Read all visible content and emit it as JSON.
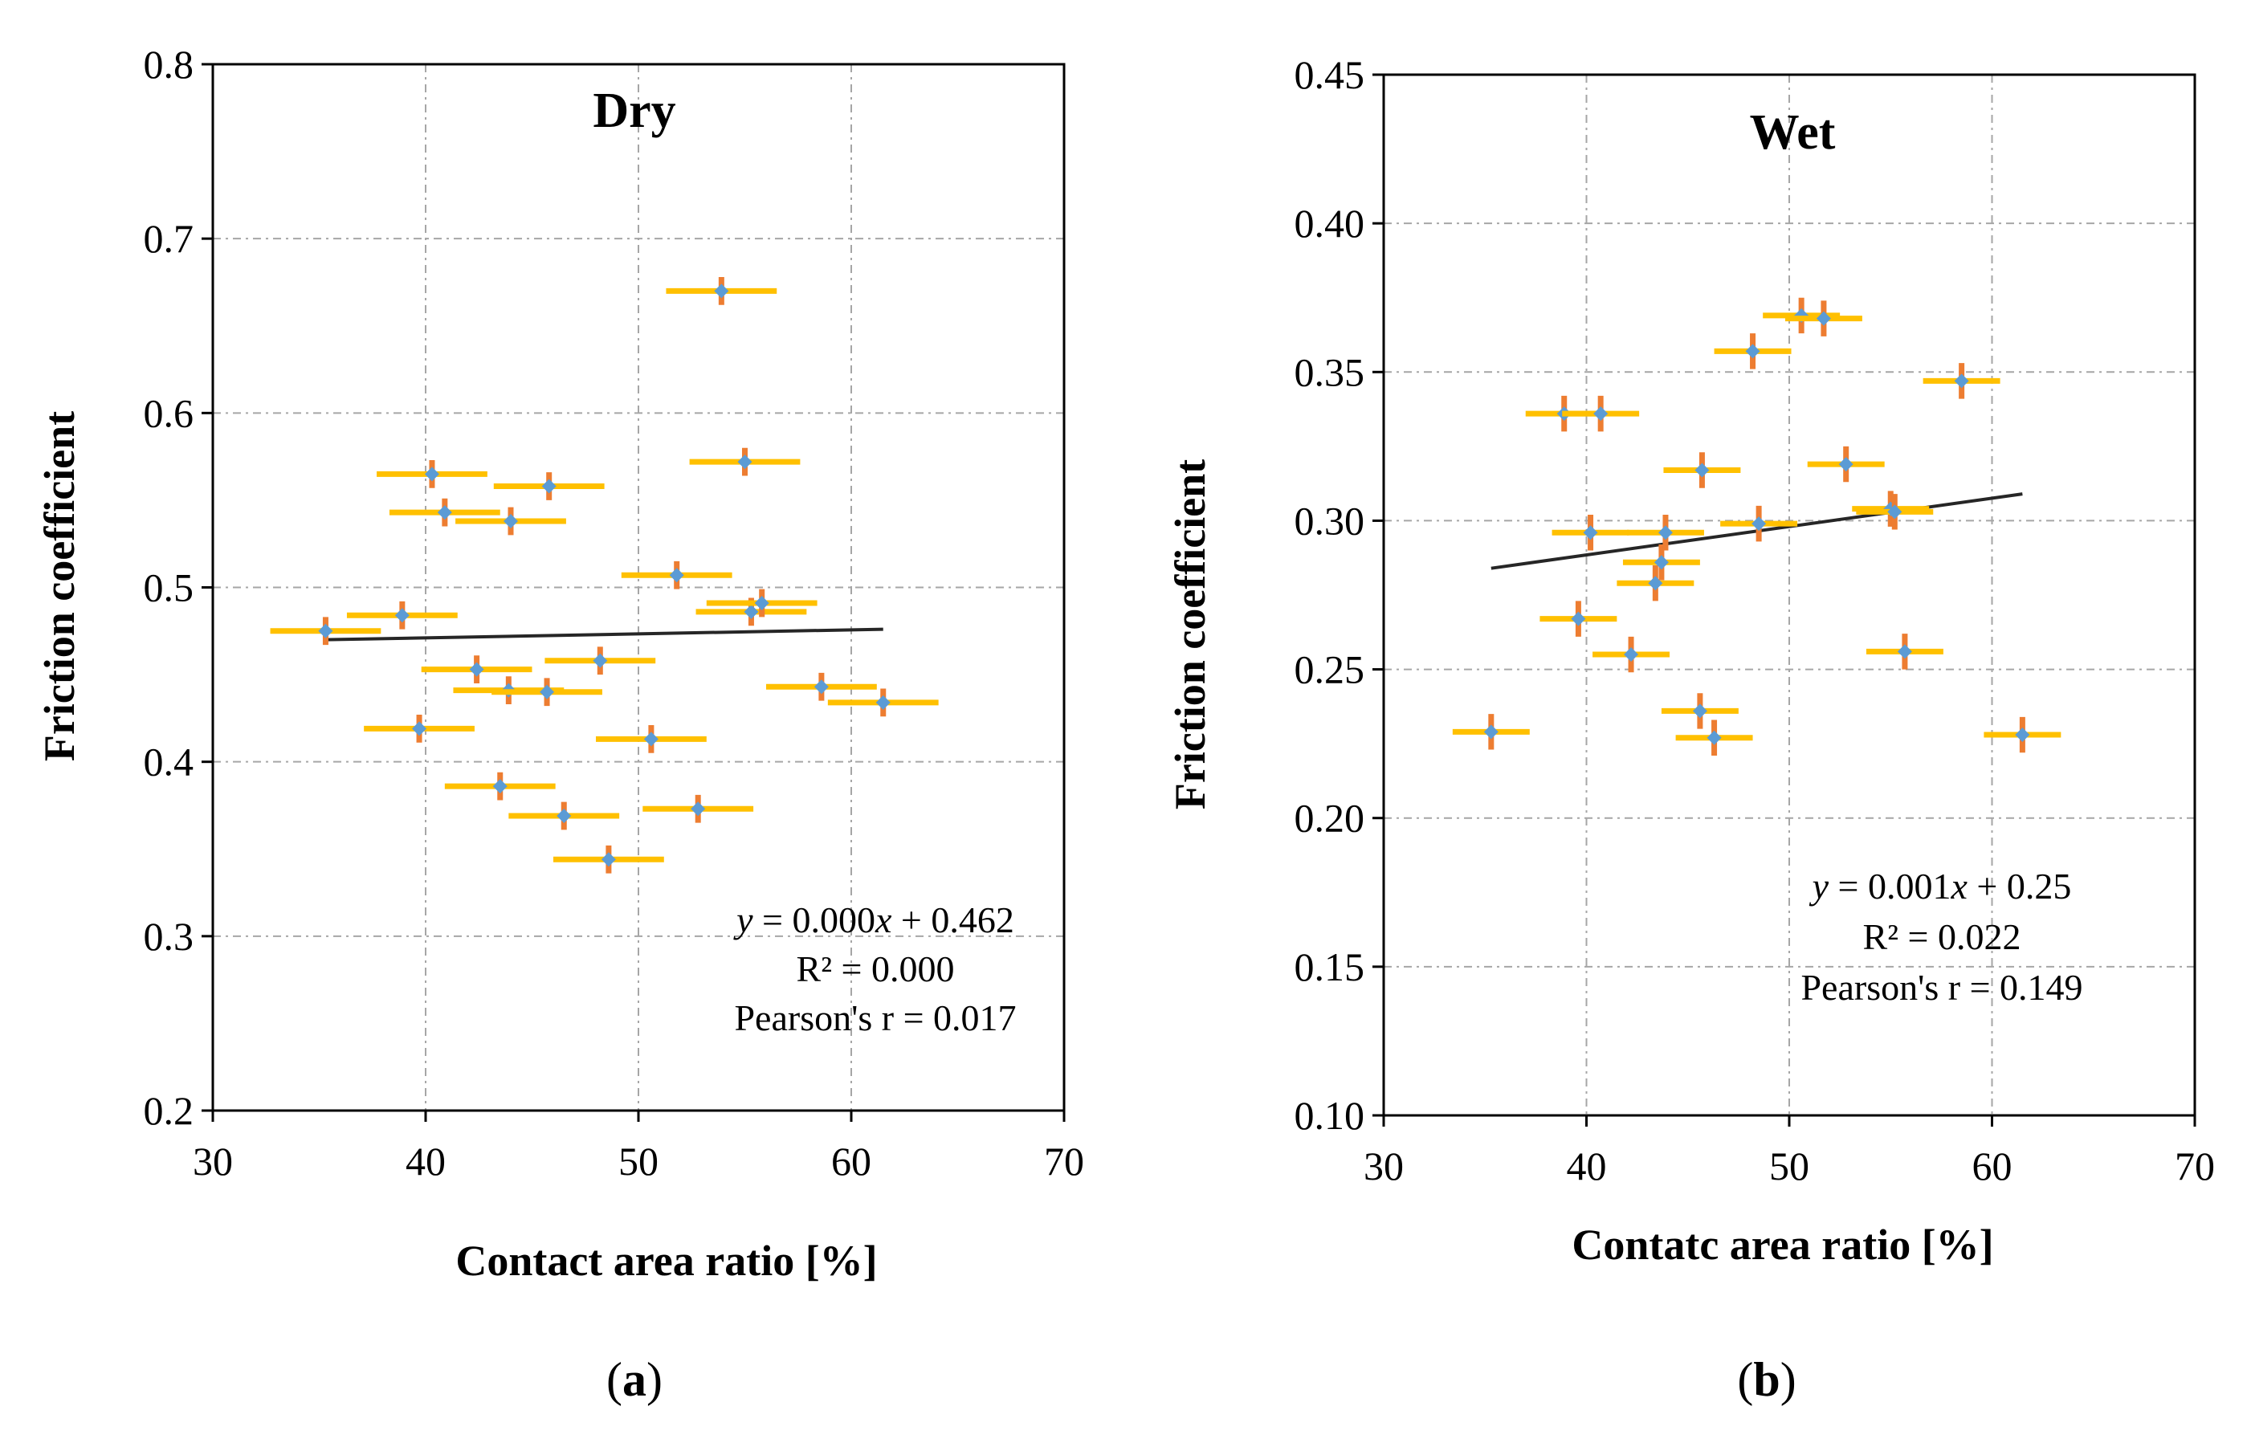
{
  "chart_data": [
    {
      "type": "scatter",
      "title": "Dry",
      "caption_letter": "a",
      "xlabel": "Contact area ratio [%]",
      "ylabel": "Friction coefficient",
      "xlim": [
        30,
        70
      ],
      "ylim": [
        0.2,
        0.8
      ],
      "xticks": [
        30,
        40,
        50,
        60,
        70
      ],
      "yticks": [
        0.2,
        0.3,
        0.4,
        0.5,
        0.6,
        0.7,
        0.8
      ],
      "ytick_decimals": 1,
      "grid": true,
      "xerr": 2.6,
      "yerr": 0.008,
      "colors": {
        "point": "#5b9bd5",
        "xerr": "#ffc000",
        "yerr": "#ed7d31",
        "trend": "#262626",
        "grid": "#a6a6a6"
      },
      "points": [
        {
          "x": 35.3,
          "y": 0.475
        },
        {
          "x": 38.9,
          "y": 0.484
        },
        {
          "x": 39.7,
          "y": 0.419
        },
        {
          "x": 40.3,
          "y": 0.565
        },
        {
          "x": 40.9,
          "y": 0.543
        },
        {
          "x": 42.4,
          "y": 0.453
        },
        {
          "x": 43.5,
          "y": 0.386
        },
        {
          "x": 43.9,
          "y": 0.441
        },
        {
          "x": 44.0,
          "y": 0.538
        },
        {
          "x": 45.7,
          "y": 0.44
        },
        {
          "x": 45.8,
          "y": 0.558
        },
        {
          "x": 46.5,
          "y": 0.369
        },
        {
          "x": 48.2,
          "y": 0.458
        },
        {
          "x": 48.6,
          "y": 0.344
        },
        {
          "x": 50.6,
          "y": 0.413
        },
        {
          "x": 51.8,
          "y": 0.507
        },
        {
          "x": 52.8,
          "y": 0.373
        },
        {
          "x": 53.9,
          "y": 0.67
        },
        {
          "x": 55.0,
          "y": 0.572
        },
        {
          "x": 55.3,
          "y": 0.486
        },
        {
          "x": 55.8,
          "y": 0.491
        },
        {
          "x": 58.6,
          "y": 0.443
        },
        {
          "x": 61.5,
          "y": 0.434
        }
      ],
      "trendline": {
        "x": [
          35.3,
          61.5
        ],
        "y": [
          0.47,
          0.476
        ]
      },
      "annotation": {
        "eq_y": "y",
        "eq_mid": " = 0.000",
        "eq_x": "x",
        "eq_tail": " + 0.462",
        "r2": "R² = 0.000",
        "pearson": "Pearson's r = 0.017"
      }
    },
    {
      "type": "scatter",
      "title": "Wet",
      "caption_letter": "b",
      "xlabel": "Contatc area ratio [%]",
      "ylabel": "Friction coefficient",
      "xlim": [
        30,
        70
      ],
      "ylim": [
        0.1,
        0.45
      ],
      "xticks": [
        30,
        40,
        50,
        60,
        70
      ],
      "yticks": [
        0.1,
        0.15,
        0.2,
        0.25,
        0.3,
        0.35,
        0.4,
        0.45
      ],
      "ytick_decimals": 2,
      "grid": true,
      "xerr": 1.9,
      "yerr": 0.006,
      "colors": {
        "point": "#5b9bd5",
        "xerr": "#ffc000",
        "yerr": "#ed7d31",
        "trend": "#262626",
        "grid": "#a6a6a6"
      },
      "points": [
        {
          "x": 35.3,
          "y": 0.229
        },
        {
          "x": 38.9,
          "y": 0.336
        },
        {
          "x": 39.6,
          "y": 0.267
        },
        {
          "x": 40.2,
          "y": 0.296
        },
        {
          "x": 40.7,
          "y": 0.336
        },
        {
          "x": 42.2,
          "y": 0.255
        },
        {
          "x": 43.4,
          "y": 0.279
        },
        {
          "x": 43.7,
          "y": 0.286
        },
        {
          "x": 43.9,
          "y": 0.296
        },
        {
          "x": 45.6,
          "y": 0.236
        },
        {
          "x": 45.7,
          "y": 0.317
        },
        {
          "x": 46.3,
          "y": 0.227
        },
        {
          "x": 48.2,
          "y": 0.357
        },
        {
          "x": 48.5,
          "y": 0.299
        },
        {
          "x": 50.6,
          "y": 0.369
        },
        {
          "x": 51.7,
          "y": 0.368
        },
        {
          "x": 52.8,
          "y": 0.319
        },
        {
          "x": 55.0,
          "y": 0.304
        },
        {
          "x": 55.2,
          "y": 0.303
        },
        {
          "x": 55.7,
          "y": 0.256
        },
        {
          "x": 58.5,
          "y": 0.347
        },
        {
          "x": 61.5,
          "y": 0.228
        }
      ],
      "trendline": {
        "x": [
          35.3,
          61.5
        ],
        "y": [
          0.284,
          0.309
        ]
      },
      "annotation": {
        "eq_y": "y",
        "eq_mid": " = 0.001",
        "eq_x": "x",
        "eq_tail": " + 0.25",
        "r2": "R² = 0.022",
        "pearson": "Pearson's r = 0.149"
      }
    }
  ]
}
